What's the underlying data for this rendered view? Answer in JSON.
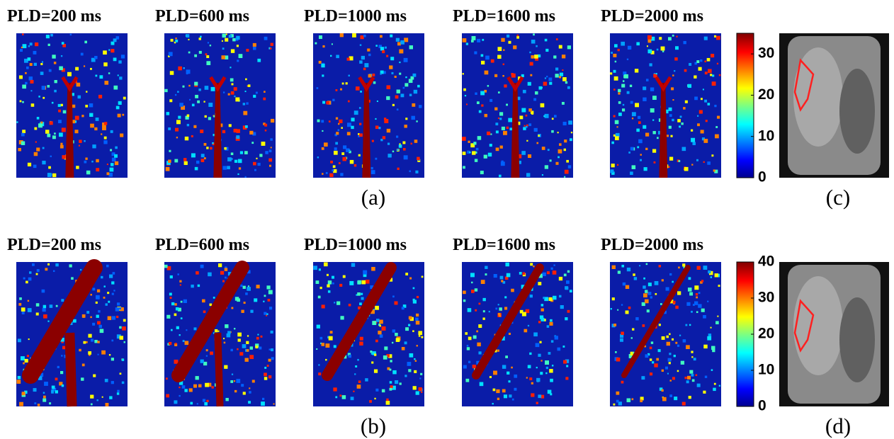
{
  "rows": [
    {
      "titles": [
        "PLD=200 ms",
        "PLD=600 ms",
        "PLD=1000 ms",
        "PLD=1600 ms",
        "PLD=2000 ms"
      ],
      "label": "(a)",
      "colorbar": {
        "lim": [
          0,
          35
        ],
        "ticks": [
          0,
          10,
          20,
          30
        ]
      },
      "anatomy_label": "(c)"
    },
    {
      "titles": [
        "PLD=200 ms",
        "PLD=600 ms",
        "PLD=1000 ms",
        "PLD=1600 ms",
        "PLD=2000 ms"
      ],
      "label": "(b)",
      "colorbar": {
        "lim": [
          0,
          40
        ],
        "ticks": [
          0,
          10,
          20,
          30,
          40
        ]
      },
      "anatomy_label": "(d)"
    }
  ]
}
